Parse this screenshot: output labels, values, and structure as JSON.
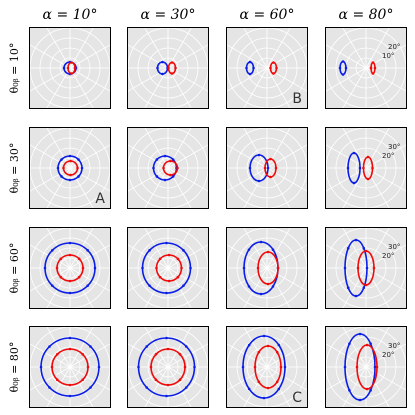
{
  "chart_data": {
    "type": "polar_grid",
    "column_titles": [
      "α = 10°",
      "α = 30°",
      "α = 60°",
      "α = 80°"
    ],
    "row_labels": [
      "θ₀ᵦ = 10°",
      "θ₀ᵦ = 30°",
      "θ₀ᵦ = 60°",
      "θ₀ᵦ = 80°"
    ],
    "colors": {
      "blue": "#0a1ee6",
      "red": "#f00a0a",
      "panel_bg": "#e5e5e5",
      "grid": "#ffffff"
    },
    "panels": [
      {
        "row": 0,
        "col": 0,
        "label": "",
        "ticks": [],
        "blue": {
          "cx": 0.0,
          "rx": 6,
          "ry": 6
        },
        "red": {
          "cx": 1.5,
          "rx": 3.5,
          "ry": 5.5
        }
      },
      {
        "row": 0,
        "col": 1,
        "label": "",
        "ticks": [],
        "blue": {
          "cx": -5.5,
          "rx": 5,
          "ry": 6
        },
        "red": {
          "cx": 4,
          "rx": 3.5,
          "ry": 5.5
        }
      },
      {
        "row": 0,
        "col": 2,
        "label": "B",
        "ticks": [],
        "blue": {
          "cx": -17,
          "rx": 3.5,
          "ry": 6
        },
        "red": {
          "cx": 6.5,
          "rx": 3,
          "ry": 5.5
        }
      },
      {
        "row": 0,
        "col": 3,
        "label": "",
        "ticks": [
          "10°",
          "20°"
        ],
        "blue": {
          "cx": -23,
          "rx": 3,
          "ry": 6.5
        },
        "red": {
          "cx": 7,
          "rx": 2,
          "ry": 5.5
        }
      },
      {
        "row": 1,
        "col": 0,
        "label": "A",
        "ticks": [],
        "blue": {
          "cx": 0.0,
          "rx": 12,
          "ry": 12
        },
        "red": {
          "cx": 0.5,
          "rx": 7,
          "ry": 7
        }
      },
      {
        "row": 1,
        "col": 1,
        "label": "",
        "ticks": [],
        "blue": {
          "cx": -3,
          "rx": 11.5,
          "ry": 12
        },
        "red": {
          "cx": 2.5,
          "rx": 7,
          "ry": 7
        }
      },
      {
        "row": 1,
        "col": 2,
        "label": "",
        "ticks": [],
        "blue": {
          "cx": -8,
          "rx": 9,
          "ry": 13
        },
        "red": {
          "cx": 3.5,
          "rx": 5.5,
          "ry": 9
        }
      },
      {
        "row": 1,
        "col": 3,
        "label": "",
        "ticks": [
          "20°",
          "30°"
        ],
        "blue": {
          "cx": -12,
          "rx": 6,
          "ry": 15
        },
        "red": {
          "cx": 2,
          "rx": 4.5,
          "ry": 11
        }
      },
      {
        "row": 2,
        "col": 0,
        "label": "",
        "ticks": [],
        "blue": {
          "cx": 0.0,
          "rx": 25,
          "ry": 25
        },
        "red": {
          "cx": 0.0,
          "rx": 13,
          "ry": 13
        }
      },
      {
        "row": 2,
        "col": 1,
        "label": "",
        "ticks": [],
        "blue": {
          "cx": -1.5,
          "rx": 24,
          "ry": 25
        },
        "red": {
          "cx": 1,
          "rx": 12.5,
          "ry": 13
        }
      },
      {
        "row": 2,
        "col": 2,
        "label": "",
        "ticks": [],
        "blue": {
          "cx": -6,
          "rx": 17,
          "ry": 26
        },
        "red": {
          "cx": 1,
          "rx": 10,
          "ry": 16
        }
      },
      {
        "row": 2,
        "col": 3,
        "label": "",
        "ticks": [
          "20°",
          "30°"
        ],
        "blue": {
          "cx": -10,
          "rx": 11,
          "ry": 28
        },
        "red": {
          "cx": 0,
          "rx": 8,
          "ry": 17
        }
      },
      {
        "row": 3,
        "col": 0,
        "label": "",
        "ticks": [],
        "blue": {
          "cx": 0.0,
          "rx": 29,
          "ry": 29
        },
        "red": {
          "cx": 0.0,
          "rx": 18,
          "ry": 18
        }
      },
      {
        "row": 3,
        "col": 1,
        "label": "",
        "ticks": [],
        "blue": {
          "cx": -1.5,
          "rx": 28,
          "ry": 29
        },
        "red": {
          "cx": 0,
          "rx": 17,
          "ry": 18
        }
      },
      {
        "row": 3,
        "col": 2,
        "label": "C",
        "ticks": [],
        "blue": {
          "cx": -3,
          "rx": 21,
          "ry": 31
        },
        "red": {
          "cx": 1,
          "rx": 13,
          "ry": 21
        }
      },
      {
        "row": 3,
        "col": 3,
        "label": "",
        "ticks": [
          "20°",
          "30°"
        ],
        "blue": {
          "cx": -6,
          "rx": 15,
          "ry": 33
        },
        "red": {
          "cx": 1,
          "rx": 10,
          "ry": 22
        }
      }
    ]
  }
}
